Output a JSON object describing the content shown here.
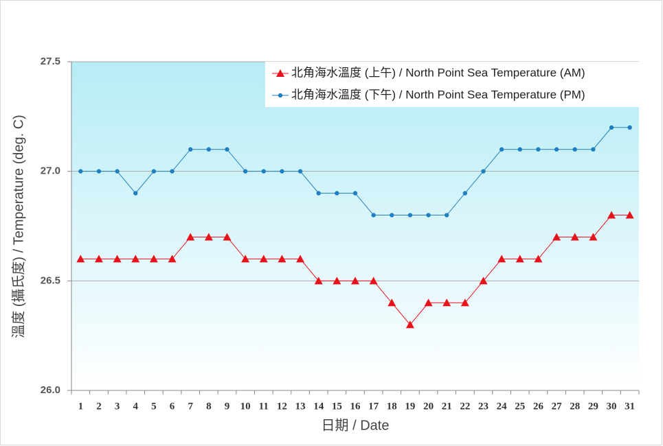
{
  "chart_data": {
    "type": "line",
    "x_label": "日期 / Date",
    "y_label": "溫度 (攝氏度) / Temperature (deg. C)",
    "categories": [
      "1",
      "2",
      "3",
      "4",
      "5",
      "6",
      "7",
      "8",
      "9",
      "10",
      "11",
      "12",
      "13",
      "14",
      "15",
      "16",
      "17",
      "18",
      "19",
      "20",
      "21",
      "22",
      "23",
      "24",
      "25",
      "26",
      "27",
      "28",
      "29",
      "30",
      "31"
    ],
    "series": [
      {
        "name": "北角海水溫度 (上午) / North Point Sea Temperature (AM)",
        "color": "#e8121b",
        "marker": "triangle",
        "values": [
          26.6,
          26.6,
          26.6,
          26.6,
          26.6,
          26.6,
          26.7,
          26.7,
          26.7,
          26.6,
          26.6,
          26.6,
          26.6,
          26.5,
          26.5,
          26.5,
          26.5,
          26.4,
          26.3,
          26.4,
          26.4,
          26.4,
          26.5,
          26.6,
          26.6,
          26.6,
          26.7,
          26.7,
          26.7,
          26.8,
          26.8
        ]
      },
      {
        "name": "北角海水溫度 (下午) / North Point Sea Temperature (PM)",
        "color": "#1f7fc0",
        "marker": "circle",
        "values": [
          27.0,
          27.0,
          27.0,
          26.9,
          27.0,
          27.0,
          27.1,
          27.1,
          27.1,
          27.0,
          27.0,
          27.0,
          27.0,
          26.9,
          26.9,
          26.9,
          26.8,
          26.8,
          26.8,
          26.8,
          26.8,
          26.9,
          27.0,
          27.1,
          27.1,
          27.1,
          27.1,
          27.1,
          27.1,
          27.2,
          27.2
        ]
      }
    ],
    "ylim": [
      26.0,
      27.5
    ],
    "yticks": [
      {
        "value": 26.0,
        "label": "26.0"
      },
      26.5,
      {
        "value": 27.0,
        "label": "27.0"
      },
      27.5
    ],
    "grid": true,
    "legend": "top-right"
  }
}
